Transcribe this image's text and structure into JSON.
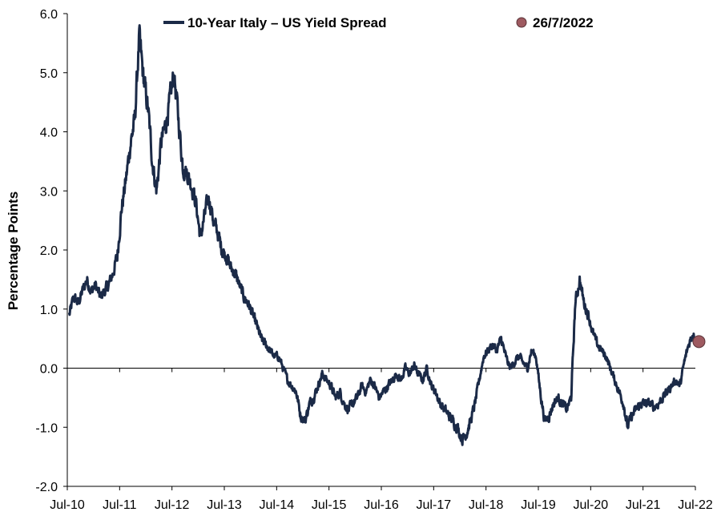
{
  "chart_data": {
    "type": "line",
    "xlabel": "",
    "ylabel": "Percentage Points",
    "ylim": [
      -2.0,
      6.0
    ],
    "xlim": [
      "Jul-10",
      "Jul-22"
    ],
    "y_ticks": [
      "6.0",
      "5.0",
      "4.0",
      "3.0",
      "2.0",
      "1.0",
      "0.0",
      "-1.0",
      "-2.0"
    ],
    "x_ticks": [
      "Jul-10",
      "Jul-11",
      "Jul-12",
      "Jul-13",
      "Jul-14",
      "Jul-15",
      "Jul-16",
      "Jul-17",
      "Jul-18",
      "Jul-19",
      "Jul-20",
      "Jul-21",
      "Jul-22"
    ],
    "grid": false,
    "legend_position": "top",
    "series": [
      {
        "name": "10-Year Italy – US Yield Spread",
        "color": "#1b2a47",
        "points": [
          [
            "2010-07",
            0.9
          ],
          [
            "2010-08",
            1.2
          ],
          [
            "2010-09",
            1.1
          ],
          [
            "2010-10",
            1.3
          ],
          [
            "2010-11",
            1.5
          ],
          [
            "2010-12",
            1.3
          ],
          [
            "2011-01",
            1.4
          ],
          [
            "2011-02",
            1.2
          ],
          [
            "2011-03",
            1.3
          ],
          [
            "2011-04",
            1.4
          ],
          [
            "2011-05",
            1.6
          ],
          [
            "2011-06",
            1.9
          ],
          [
            "2011-07",
            2.7
          ],
          [
            "2011-08",
            3.2
          ],
          [
            "2011-09",
            3.8
          ],
          [
            "2011-10",
            4.2
          ],
          [
            "2011-11",
            5.6
          ],
          [
            "2011-12",
            4.9
          ],
          [
            "2012-01",
            4.4
          ],
          [
            "2012-02",
            3.5
          ],
          [
            "2012-03",
            3.0
          ],
          [
            "2012-04",
            3.8
          ],
          [
            "2012-05",
            4.1
          ],
          [
            "2012-06",
            4.5
          ],
          [
            "2012-07",
            5.0
          ],
          [
            "2012-08",
            4.2
          ],
          [
            "2012-09",
            3.4
          ],
          [
            "2012-10",
            3.3
          ],
          [
            "2012-11",
            3.1
          ],
          [
            "2012-12",
            2.8
          ],
          [
            "2013-01",
            2.2
          ],
          [
            "2013-02",
            2.6
          ],
          [
            "2013-03",
            2.9
          ],
          [
            "2013-04",
            2.5
          ],
          [
            "2013-05",
            2.3
          ],
          [
            "2013-06",
            2.0
          ],
          [
            "2013-07",
            1.9
          ],
          [
            "2013-08",
            1.7
          ],
          [
            "2013-09",
            1.6
          ],
          [
            "2013-10",
            1.4
          ],
          [
            "2013-11",
            1.2
          ],
          [
            "2013-12",
            1.1
          ],
          [
            "2014-01",
            0.9
          ],
          [
            "2014-02",
            0.7
          ],
          [
            "2014-03",
            0.5
          ],
          [
            "2014-04",
            0.4
          ],
          [
            "2014-05",
            0.3
          ],
          [
            "2014-06",
            0.2
          ],
          [
            "2014-07",
            0.2
          ],
          [
            "2014-08",
            0.0
          ],
          [
            "2014-09",
            -0.2
          ],
          [
            "2014-10",
            -0.3
          ],
          [
            "2014-11",
            -0.4
          ],
          [
            "2014-12",
            -0.8
          ],
          [
            "2015-01",
            -0.9
          ],
          [
            "2015-02",
            -0.6
          ],
          [
            "2015-03",
            -0.5
          ],
          [
            "2015-04",
            -0.3
          ],
          [
            "2015-05",
            -0.1
          ],
          [
            "2015-06",
            -0.2
          ],
          [
            "2015-07",
            -0.3
          ],
          [
            "2015-08",
            -0.5
          ],
          [
            "2015-09",
            -0.4
          ],
          [
            "2015-10",
            -0.6
          ],
          [
            "2015-11",
            -0.7
          ],
          [
            "2015-12",
            -0.6
          ],
          [
            "2016-01",
            -0.5
          ],
          [
            "2016-02",
            -0.3
          ],
          [
            "2016-03",
            -0.4
          ],
          [
            "2016-04",
            -0.2
          ],
          [
            "2016-05",
            -0.3
          ],
          [
            "2016-06",
            -0.5
          ],
          [
            "2016-07",
            -0.4
          ],
          [
            "2016-08",
            -0.3
          ],
          [
            "2016-09",
            -0.2
          ],
          [
            "2016-10",
            -0.1
          ],
          [
            "2016-11",
            -0.2
          ],
          [
            "2016-12",
            0.0
          ],
          [
            "2017-01",
            -0.1
          ],
          [
            "2017-02",
            0.05
          ],
          [
            "2017-03",
            -0.1
          ],
          [
            "2017-04",
            -0.2
          ],
          [
            "2017-05",
            0.0
          ],
          [
            "2017-06",
            -0.3
          ],
          [
            "2017-07",
            -0.4
          ],
          [
            "2017-08",
            -0.6
          ],
          [
            "2017-09",
            -0.7
          ],
          [
            "2017-10",
            -0.8
          ],
          [
            "2017-11",
            -0.9
          ],
          [
            "2017-12",
            -1.0
          ],
          [
            "2018-01",
            -1.2
          ],
          [
            "2018-02",
            -1.1
          ],
          [
            "2018-03",
            -0.9
          ],
          [
            "2018-04",
            -0.6
          ],
          [
            "2018-05",
            -0.2
          ],
          [
            "2018-06",
            0.2
          ],
          [
            "2018-07",
            0.3
          ],
          [
            "2018-08",
            0.4
          ],
          [
            "2018-09",
            0.3
          ],
          [
            "2018-10",
            0.5
          ],
          [
            "2018-11",
            0.2
          ],
          [
            "2018-12",
            0.0
          ],
          [
            "2019-01",
            0.1
          ],
          [
            "2019-02",
            0.2
          ],
          [
            "2019-03",
            0.1
          ],
          [
            "2019-04",
            0.0
          ],
          [
            "2019-05",
            0.3
          ],
          [
            "2019-06",
            0.2
          ],
          [
            "2019-07",
            -0.4
          ],
          [
            "2019-08",
            -0.9
          ],
          [
            "2019-09",
            -0.8
          ],
          [
            "2019-10",
            -0.6
          ],
          [
            "2019-11",
            -0.5
          ],
          [
            "2019-12",
            -0.6
          ],
          [
            "2020-01",
            -0.7
          ],
          [
            "2020-02",
            -0.5
          ],
          [
            "2020-03",
            1.1
          ],
          [
            "2020-04",
            1.5
          ],
          [
            "2020-05",
            1.1
          ],
          [
            "2020-06",
            0.9
          ],
          [
            "2020-07",
            0.6
          ],
          [
            "2020-08",
            0.4
          ],
          [
            "2020-09",
            0.3
          ],
          [
            "2020-10",
            0.2
          ],
          [
            "2020-11",
            0.0
          ],
          [
            "2020-12",
            -0.2
          ],
          [
            "2021-01",
            -0.4
          ],
          [
            "2021-02",
            -0.6
          ],
          [
            "2021-03",
            -1.0
          ],
          [
            "2021-04",
            -0.8
          ],
          [
            "2021-05",
            -0.7
          ],
          [
            "2021-06",
            -0.6
          ],
          [
            "2021-07",
            -0.6
          ],
          [
            "2021-08",
            -0.6
          ],
          [
            "2021-09",
            -0.65
          ],
          [
            "2021-10",
            -0.6
          ],
          [
            "2021-11",
            -0.5
          ],
          [
            "2021-12",
            -0.4
          ],
          [
            "2022-01",
            -0.3
          ],
          [
            "2022-02",
            -0.2
          ],
          [
            "2022-03",
            -0.3
          ],
          [
            "2022-04",
            0.1
          ],
          [
            "2022-05",
            0.4
          ],
          [
            "2022-06",
            0.6
          ],
          [
            "2022-07",
            0.45
          ]
        ]
      }
    ],
    "highlight_point": {
      "label": "26/7/2022",
      "date": "2022-07-26",
      "value": 0.45,
      "color": "#9e5a60"
    }
  }
}
